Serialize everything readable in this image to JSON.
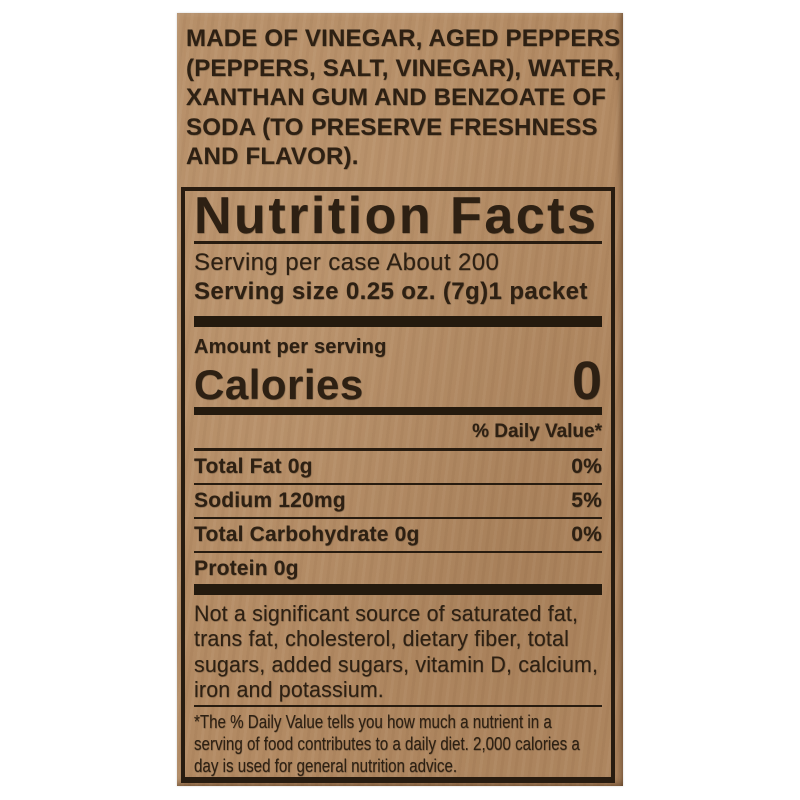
{
  "page": {
    "background": "#ffffff"
  },
  "label": {
    "paper_color": "#b28a63",
    "ink_color": "#2d2013",
    "ingredients_lines": [
      "MADE OF VINEGAR, AGED PEPPERS",
      "(PEPPERS, SALT, VINEGAR), WATER,",
      "XANTHAN GUM AND BENZOATE OF",
      "SODA (TO PRESERVE FRESHNESS",
      "AND FLAVOR)."
    ],
    "nutrition": {
      "title": "Nutrition Facts",
      "serving_lines": [
        "Serving per case About 200",
        "Serving size 0.25 oz. (7g)1 packet"
      ],
      "amount_per_serving": "Amount per serving",
      "calories_label": "Calories",
      "calories_value": "0",
      "daily_value_header": "% Daily Value*",
      "rows": [
        {
          "label": "Total Fat 0g",
          "daily_value": "0%"
        },
        {
          "label": "Sodium 120mg",
          "daily_value": "5%"
        },
        {
          "label": "Total Carbohydrate 0g",
          "daily_value": "0%"
        },
        {
          "label": "Protein 0g",
          "daily_value": ""
        }
      ],
      "disclaimer_lines": [
        "Not a significant source of saturated fat,",
        "trans fat, cholesterol, dietary fiber, total",
        "sugars, added sugars, vitamin D, calcium,",
        "iron and potassium."
      ],
      "footnote_lines": [
        "*The % Daily Value tells you how much a nutrient in a",
        "serving of food contributes to a daily diet. 2,000 calories a",
        "day is used for general nutrition advice."
      ]
    }
  }
}
